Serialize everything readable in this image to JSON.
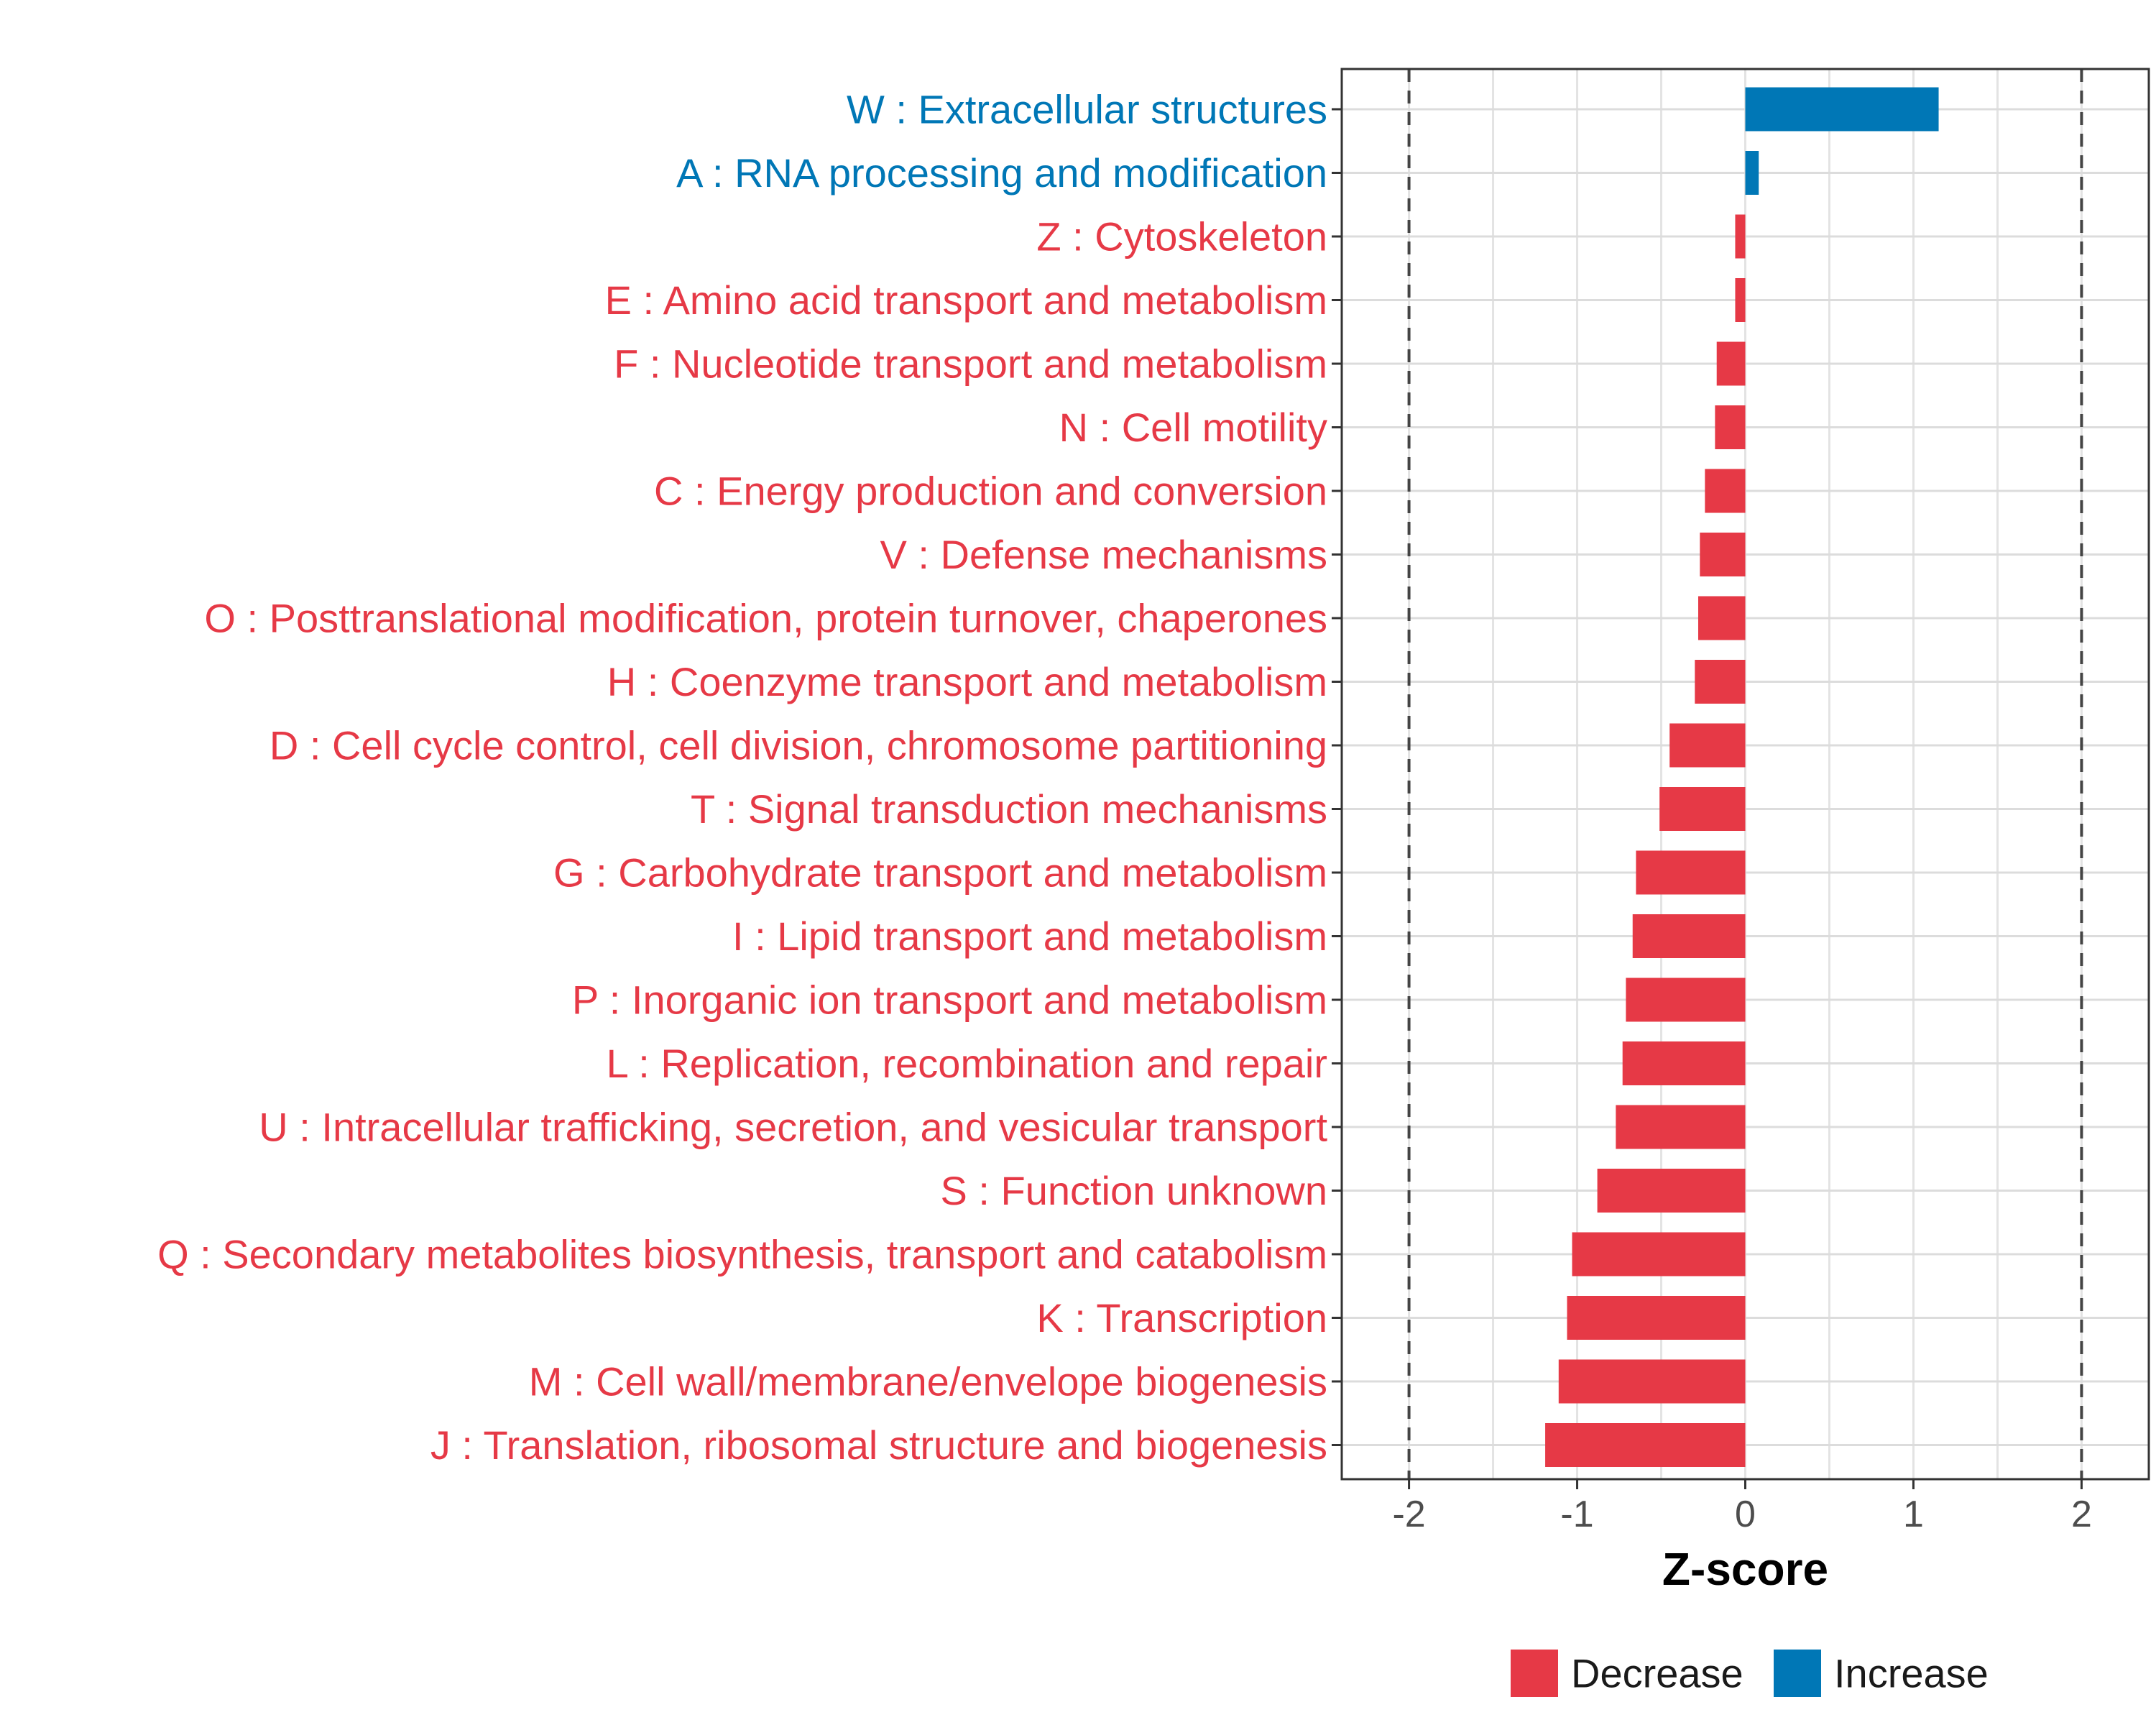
{
  "chart_data": {
    "type": "bar",
    "orientation": "horizontal",
    "xlabel": "Z-score",
    "xlim": [
      -2.4,
      2.4
    ],
    "xticks": [
      -2,
      -1,
      0,
      1,
      2
    ],
    "xtick_labels": [
      "-2",
      "-1",
      "0",
      "1",
      "2"
    ],
    "reference_lines": [
      -2,
      2
    ],
    "grid": true,
    "legend_position": "bottom",
    "colors": {
      "Decrease": "#E63946",
      "Increase": "#0077B6"
    },
    "legend": [
      {
        "label": "Decrease",
        "color": "#E63946"
      },
      {
        "label": "Increase",
        "color": "#0077B6"
      }
    ],
    "bars": [
      {
        "label": "W : Extracellular structures",
        "value": 1.15,
        "direction": "Increase"
      },
      {
        "label": "A : RNA processing and modification",
        "value": 0.08,
        "direction": "Increase"
      },
      {
        "label": "Z : Cytoskeleton",
        "value": -0.06,
        "direction": "Decrease"
      },
      {
        "label": "E : Amino acid transport and metabolism",
        "value": -0.06,
        "direction": "Decrease"
      },
      {
        "label": "F : Nucleotide transport and metabolism",
        "value": -0.17,
        "direction": "Decrease"
      },
      {
        "label": "N : Cell motility",
        "value": -0.18,
        "direction": "Decrease"
      },
      {
        "label": "C : Energy production and conversion",
        "value": -0.24,
        "direction": "Decrease"
      },
      {
        "label": "V : Defense mechanisms",
        "value": -0.27,
        "direction": "Decrease"
      },
      {
        "label": "O : Posttranslational modification, protein turnover, chaperones",
        "value": -0.28,
        "direction": "Decrease"
      },
      {
        "label": "H : Coenzyme transport and metabolism",
        "value": -0.3,
        "direction": "Decrease"
      },
      {
        "label": "D : Cell cycle control, cell division, chromosome partitioning",
        "value": -0.45,
        "direction": "Decrease"
      },
      {
        "label": "T : Signal transduction mechanisms",
        "value": -0.51,
        "direction": "Decrease"
      },
      {
        "label": "G : Carbohydrate transport and metabolism",
        "value": -0.65,
        "direction": "Decrease"
      },
      {
        "label": "I : Lipid transport and metabolism",
        "value": -0.67,
        "direction": "Decrease"
      },
      {
        "label": "P : Inorganic ion transport and metabolism",
        "value": -0.71,
        "direction": "Decrease"
      },
      {
        "label": "L : Replication, recombination and repair",
        "value": -0.73,
        "direction": "Decrease"
      },
      {
        "label": "U : Intracellular trafficking, secretion, and vesicular transport",
        "value": -0.77,
        "direction": "Decrease"
      },
      {
        "label": "S : Function unknown",
        "value": -0.88,
        "direction": "Decrease"
      },
      {
        "label": "Q : Secondary metabolites biosynthesis, transport and catabolism",
        "value": -1.03,
        "direction": "Decrease"
      },
      {
        "label": "K : Transcription",
        "value": -1.06,
        "direction": "Decrease"
      },
      {
        "label": "M : Cell wall/membrane/envelope biogenesis",
        "value": -1.11,
        "direction": "Decrease"
      },
      {
        "label": "J : Translation, ribosomal structure and biogenesis",
        "value": -1.19,
        "direction": "Decrease"
      }
    ]
  }
}
